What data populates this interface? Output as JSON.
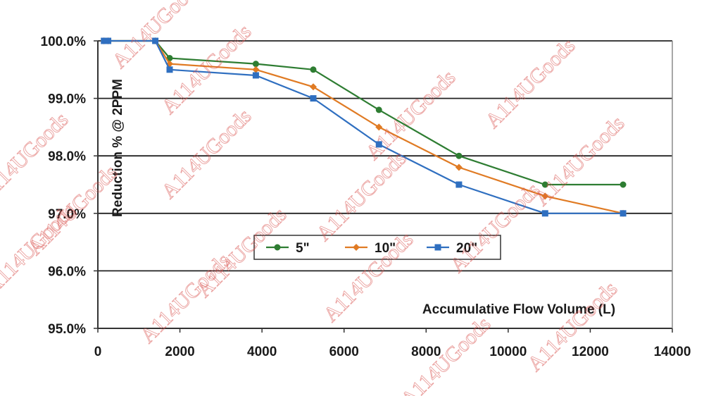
{
  "chart_data": {
    "type": "line",
    "title": "",
    "xlabel": "Accumulative Flow Volume (L)",
    "ylabel": "Reduction % @ 2PPM",
    "xlim": [
      0,
      14000
    ],
    "ylim": [
      95,
      100
    ],
    "x_ticks": [
      0,
      2000,
      4000,
      6000,
      8000,
      10000,
      12000,
      14000
    ],
    "x_tick_labels": [
      "0",
      "2000",
      "4000",
      "6000",
      "8000",
      "10000",
      "12000",
      "14000"
    ],
    "y_ticks": [
      95,
      96,
      97,
      98,
      99,
      100
    ],
    "y_tick_labels": [
      "95.0%",
      "96.0%",
      "97.0%",
      "98.0%",
      "99.0%",
      "100.0%"
    ],
    "grid": "horizontal",
    "legend_placement": "center",
    "series": [
      {
        "name": "5\"",
        "color": "#2e7d32",
        "marker": "circle",
        "x": [
          150,
          250,
          1400,
          1750,
          3850,
          5250,
          6850,
          8800,
          10900,
          12800
        ],
        "y": [
          100.0,
          100.0,
          100.0,
          99.7,
          99.6,
          99.5,
          98.8,
          98.0,
          97.5,
          97.5
        ]
      },
      {
        "name": "10\"",
        "color": "#e07b24",
        "marker": "diamond",
        "x": [
          150,
          250,
          1400,
          1750,
          3850,
          5250,
          6850,
          8800,
          10900,
          12800
        ],
        "y": [
          100.0,
          100.0,
          100.0,
          99.6,
          99.5,
          99.2,
          98.5,
          97.8,
          97.3,
          97.0
        ]
      },
      {
        "name": "20\"",
        "color": "#2f6fc0",
        "marker": "square",
        "x": [
          150,
          250,
          1400,
          1750,
          3850,
          5250,
          6850,
          8800,
          10900,
          12800
        ],
        "y": [
          100.0,
          100.0,
          100.0,
          99.5,
          99.4,
          99.0,
          98.2,
          97.5,
          97.0,
          97.0
        ]
      }
    ]
  },
  "watermark": "A114UGoods",
  "watermark_color": "#d9534f"
}
